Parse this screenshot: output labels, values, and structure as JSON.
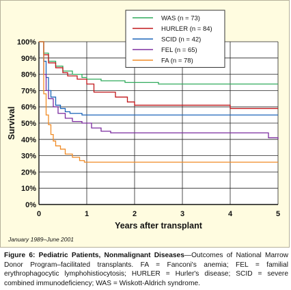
{
  "chart_data": {
    "type": "line",
    "xlabel": "Years after transplant",
    "ylabel": "Survival",
    "xlim": [
      0,
      5
    ],
    "ylim": [
      0,
      100
    ],
    "x_ticks": [
      "0",
      "1",
      "2",
      "3",
      "4",
      "5"
    ],
    "y_ticks": [
      "0%",
      "10%",
      "20%",
      "30%",
      "40%",
      "50%",
      "60%",
      "70%",
      "80%",
      "90%",
      "100%"
    ],
    "grid": true,
    "legend_position": "top-right",
    "series": [
      {
        "name": "WAS (n = 73)",
        "color": "#2eaa5a",
        "x": [
          0,
          0.1,
          0.2,
          0.35,
          0.5,
          0.7,
          0.9,
          1.0,
          1.3,
          1.8,
          2.5,
          3.0,
          5.0
        ],
        "y": [
          100,
          93,
          88,
          85,
          82,
          80,
          78,
          77,
          76,
          75,
          74,
          74,
          74
        ]
      },
      {
        "name": "HURLER (n = 84)",
        "color": "#c01418",
        "x": [
          0,
          0.1,
          0.2,
          0.35,
          0.5,
          0.6,
          0.8,
          1.0,
          1.15,
          1.6,
          1.85,
          2.0,
          4.0,
          5.0
        ],
        "y": [
          100,
          92,
          87,
          84,
          81,
          79,
          77,
          74,
          69,
          66,
          63,
          61,
          59,
          59
        ]
      },
      {
        "name": "SCID (n = 42)",
        "color": "#1a63b8",
        "x": [
          0,
          0.1,
          0.15,
          0.2,
          0.25,
          0.35,
          0.45,
          0.55,
          0.65,
          0.8,
          0.9,
          1.0,
          5.0
        ],
        "y": [
          100,
          88,
          78,
          70,
          66,
          61,
          59,
          57,
          56,
          56,
          55,
          55,
          55
        ]
      },
      {
        "name": "FEL (n = 65)",
        "color": "#7a2a9e",
        "x": [
          0,
          0.1,
          0.15,
          0.2,
          0.3,
          0.4,
          0.55,
          0.7,
          0.9,
          1.1,
          1.3,
          1.5,
          4.5,
          4.8,
          5.0
        ],
        "y": [
          100,
          80,
          70,
          65,
          60,
          56,
          53,
          51,
          50,
          47,
          45,
          44,
          44,
          41,
          40
        ]
      },
      {
        "name": "FA (n = 78)",
        "color": "#f08a24",
        "x": [
          0,
          0.1,
          0.15,
          0.2,
          0.25,
          0.3,
          0.35,
          0.45,
          0.55,
          0.7,
          0.85,
          0.95,
          5.0
        ],
        "y": [
          100,
          68,
          55,
          49,
          43,
          39,
          36,
          34,
          31,
          29,
          27,
          26,
          26
        ]
      }
    ]
  },
  "footer": {
    "date_range": "January 1989–June 2001",
    "caption_title": "Figure 6: Pediatric Patients, Nonmalignant Diseases",
    "caption_text": "—Outcomes of National Marrow Donor Program–facilitated transplants. FA = Fanconi's anemia; FEL = familial erythrophagocytic lymphohistiocytosis; HURLER = Hurler's disease; SCID = severe combined immunodeficiency; WAS = Wiskott-Aldrich syndrome."
  }
}
